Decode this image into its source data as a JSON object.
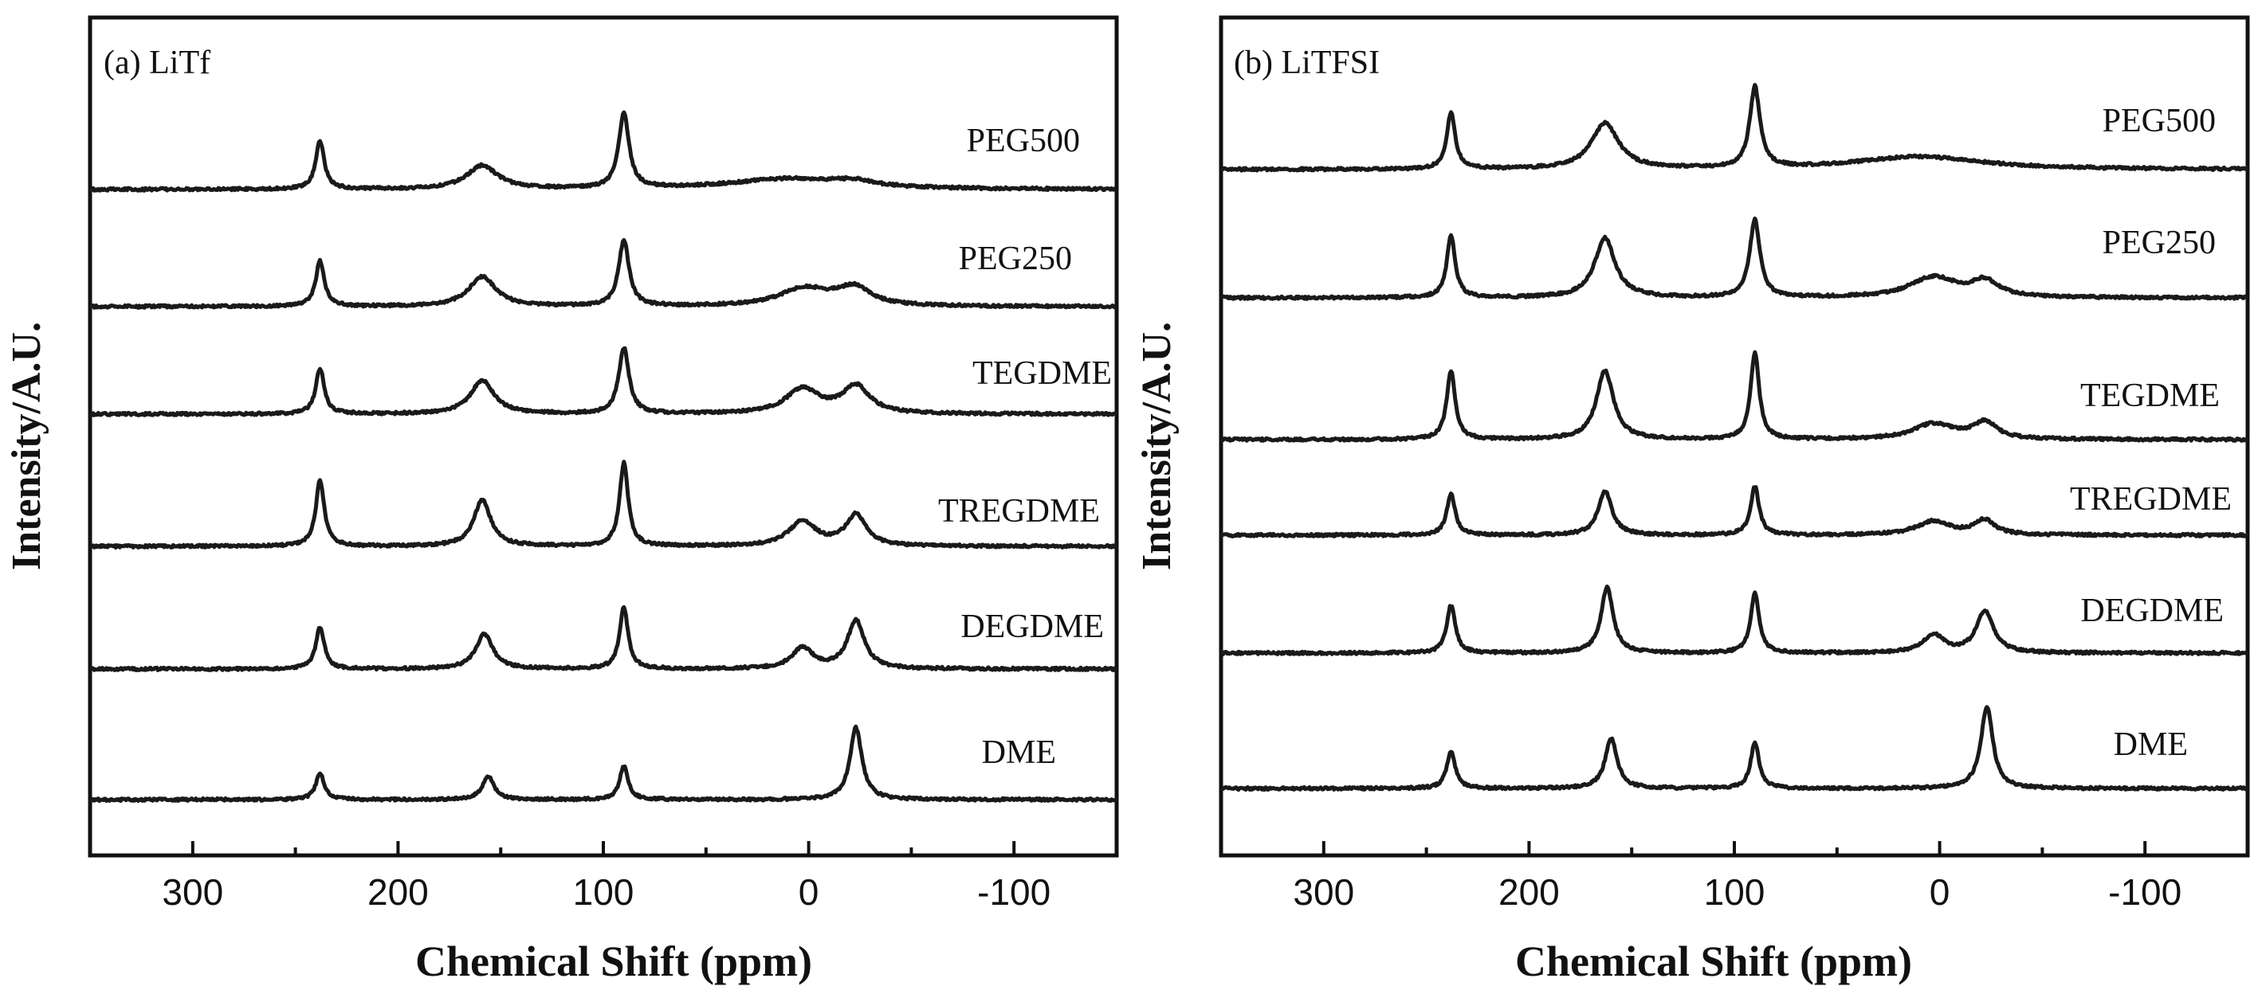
{
  "chart_data": [
    {
      "type": "line",
      "panel_label": "(a) LiTf",
      "xlabel": "Chemical Shift (ppm)",
      "ylabel": "Intensity/A.U.",
      "xlim": [
        350,
        -150
      ],
      "xticks": [
        300,
        200,
        100,
        0,
        -100
      ],
      "xtick_labels": [
        "300",
        "200",
        "100",
        "0",
        "-100"
      ],
      "series": [
        {
          "name": "PEG500",
          "peaks": [
            {
              "x": 238,
              "h": 0.55,
              "w": 2.5
            },
            {
              "x": 159,
              "h": 0.27,
              "w": 9
            },
            {
              "x": 90,
              "h": 0.85,
              "w": 3
            },
            {
              "x": 10,
              "h": 0.12,
              "w": 35
            },
            {
              "x": -22,
              "h": 0.06,
              "w": 12
            }
          ]
        },
        {
          "name": "PEG250",
          "peaks": [
            {
              "x": 238,
              "h": 0.52,
              "w": 2.5
            },
            {
              "x": 159,
              "h": 0.34,
              "w": 8
            },
            {
              "x": 90,
              "h": 0.75,
              "w": 3
            },
            {
              "x": 2,
              "h": 0.2,
              "w": 15
            },
            {
              "x": -22,
              "h": 0.2,
              "w": 10
            }
          ]
        },
        {
          "name": "TEGDME",
          "peaks": [
            {
              "x": 238,
              "h": 0.52,
              "w": 2.5
            },
            {
              "x": 159,
              "h": 0.38,
              "w": 7
            },
            {
              "x": 90,
              "h": 0.75,
              "w": 3
            },
            {
              "x": 3,
              "h": 0.28,
              "w": 10
            },
            {
              "x": -23,
              "h": 0.31,
              "w": 8
            }
          ]
        },
        {
          "name": "TREGDME",
          "peaks": [
            {
              "x": 238,
              "h": 0.75,
              "w": 2.5
            },
            {
              "x": 159,
              "h": 0.53,
              "w": 5
            },
            {
              "x": 90,
              "h": 0.95,
              "w": 2.5
            },
            {
              "x": 3,
              "h": 0.28,
              "w": 8
            },
            {
              "x": -23,
              "h": 0.35,
              "w": 6
            }
          ]
        },
        {
          "name": "DEGDME",
          "peaks": [
            {
              "x": 238,
              "h": 0.48,
              "w": 2.5
            },
            {
              "x": 158,
              "h": 0.4,
              "w": 5
            },
            {
              "x": 90,
              "h": 0.7,
              "w": 2.5
            },
            {
              "x": 3,
              "h": 0.24,
              "w": 6
            },
            {
              "x": -23,
              "h": 0.55,
              "w": 5
            }
          ]
        },
        {
          "name": "DME",
          "peaks": [
            {
              "x": 238,
              "h": 0.3,
              "w": 2.5
            },
            {
              "x": 156,
              "h": 0.26,
              "w": 3.5
            },
            {
              "x": 90,
              "h": 0.38,
              "w": 2.5
            },
            {
              "x": -23,
              "h": 0.82,
              "w": 3.5
            }
          ]
        }
      ]
    },
    {
      "type": "line",
      "panel_label": "(b) LiTFSI",
      "xlabel": "Chemical Shift (ppm)",
      "ylabel": "Intensity/A.U.",
      "xlim": [
        350,
        -150
      ],
      "xticks": [
        300,
        200,
        100,
        0,
        -100
      ],
      "xtick_labels": [
        "300",
        "200",
        "100",
        "0",
        "-100"
      ],
      "series": [
        {
          "name": "PEG500",
          "peaks": [
            {
              "x": 238,
              "h": 0.62,
              "w": 2.5
            },
            {
              "x": 163,
              "h": 0.5,
              "w": 8
            },
            {
              "x": 90,
              "h": 0.88,
              "w": 3
            },
            {
              "x": 10,
              "h": 0.14,
              "w": 38
            }
          ]
        },
        {
          "name": "PEG250",
          "peaks": [
            {
              "x": 238,
              "h": 0.67,
              "w": 2.5
            },
            {
              "x": 163,
              "h": 0.65,
              "w": 6
            },
            {
              "x": 90,
              "h": 0.85,
              "w": 3
            },
            {
              "x": 3,
              "h": 0.22,
              "w": 14
            },
            {
              "x": -22,
              "h": 0.17,
              "w": 8
            }
          ]
        },
        {
          "name": "TEGDME",
          "peaks": [
            {
              "x": 238,
              "h": 0.75,
              "w": 2.5
            },
            {
              "x": 163,
              "h": 0.75,
              "w": 5
            },
            {
              "x": 90,
              "h": 0.95,
              "w": 2.5
            },
            {
              "x": 3,
              "h": 0.17,
              "w": 12
            },
            {
              "x": -22,
              "h": 0.18,
              "w": 7
            }
          ]
        },
        {
          "name": "TREGDME",
          "peaks": [
            {
              "x": 238,
              "h": 0.45,
              "w": 2.5
            },
            {
              "x": 163,
              "h": 0.48,
              "w": 4
            },
            {
              "x": 90,
              "h": 0.53,
              "w": 2.5
            },
            {
              "x": 3,
              "h": 0.15,
              "w": 10
            },
            {
              "x": -22,
              "h": 0.16,
              "w": 6
            }
          ]
        },
        {
          "name": "DEGDME",
          "peaks": [
            {
              "x": 238,
              "h": 0.52,
              "w": 2.5
            },
            {
              "x": 162,
              "h": 0.72,
              "w": 3.5
            },
            {
              "x": 90,
              "h": 0.65,
              "w": 2.5
            },
            {
              "x": 3,
              "h": 0.2,
              "w": 6
            },
            {
              "x": -22,
              "h": 0.45,
              "w": 5
            }
          ]
        },
        {
          "name": "DME",
          "peaks": [
            {
              "x": 238,
              "h": 0.4,
              "w": 2.5
            },
            {
              "x": 160,
              "h": 0.55,
              "w": 3.5
            },
            {
              "x": 90,
              "h": 0.5,
              "w": 2.5
            },
            {
              "x": -23,
              "h": 0.9,
              "w": 3.5
            }
          ]
        }
      ]
    }
  ]
}
